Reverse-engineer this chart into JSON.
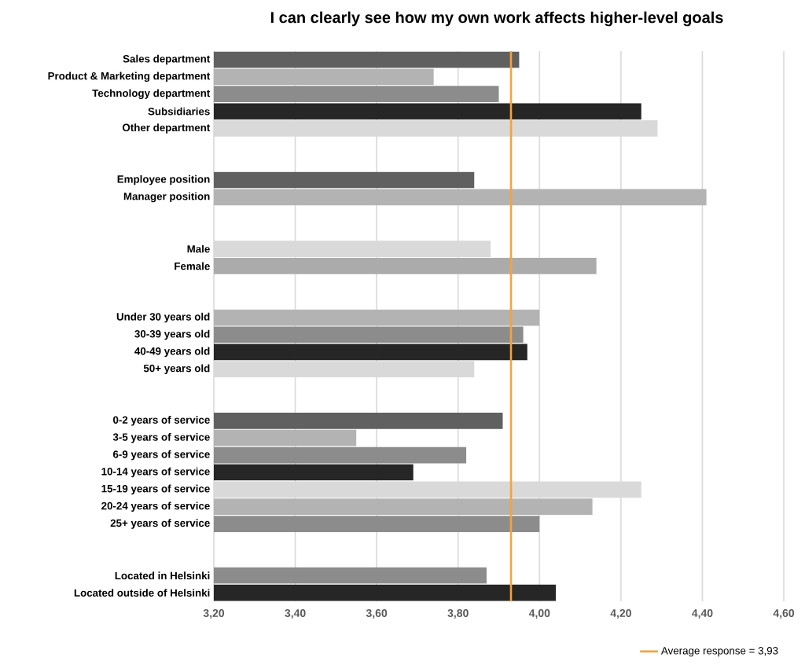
{
  "chart_data": {
    "type": "bar",
    "orientation": "horizontal",
    "title": "I can clearly see how my own work affects higher-level goals",
    "categories": [
      "Sales department",
      "Product & Marketing department",
      "Technology department",
      "Subsidiaries",
      "Other department",
      null,
      null,
      "Employee position",
      "Manager position",
      null,
      null,
      "Male",
      "Female",
      null,
      null,
      "Under 30 years old",
      "30-39 years old",
      "40-49 years old",
      "50+ years old",
      null,
      null,
      "0-2 years of service",
      "3-5 years of service",
      "6-9 years of service",
      "10-14 years of service",
      "15-19 years of service",
      "20-24 years of service",
      "25+ years of service",
      null,
      null,
      "Located in Helsinki",
      "Located outside of Helsinki"
    ],
    "values": [
      3.95,
      3.74,
      3.9,
      4.25,
      4.29,
      null,
      null,
      3.84,
      4.41,
      null,
      null,
      3.88,
      4.14,
      null,
      null,
      4.0,
      3.96,
      3.97,
      3.84,
      null,
      null,
      3.91,
      3.55,
      3.82,
      3.69,
      4.25,
      4.13,
      4.0,
      null,
      null,
      3.87,
      4.04
    ],
    "colors": [
      "#606060",
      "#b3b3b3",
      "#8c8c8c",
      "#262626",
      "#d9d9d9",
      null,
      null,
      "#606060",
      "#b3b3b3",
      null,
      null,
      "#d9d9d9",
      "#ababab",
      null,
      null,
      "#b3b3b3",
      "#8c8c8c",
      "#262626",
      "#d9d9d9",
      null,
      null,
      "#606060",
      "#b3b3b3",
      "#8c8c8c",
      "#262626",
      "#d9d9d9",
      "#b3b3b3",
      "#8c8c8c",
      null,
      null,
      "#8c8c8c",
      "#262626"
    ],
    "xlim": [
      3.2,
      4.6
    ],
    "xticks": [
      {
        "value": 3.2,
        "label": "3,20"
      },
      {
        "value": 3.4,
        "label": "3,40"
      },
      {
        "value": 3.6,
        "label": "3,60"
      },
      {
        "value": 3.8,
        "label": "3,80"
      },
      {
        "value": 4.0,
        "label": "4,00"
      },
      {
        "value": 4.2,
        "label": "4,20"
      },
      {
        "value": 4.4,
        "label": "4,40"
      },
      {
        "value": 4.6,
        "label": "4,60"
      }
    ],
    "ref_lines": [
      {
        "axis": "x",
        "value": 3.93,
        "label": "Average response = 3,93",
        "color": "#f7a23b"
      }
    ],
    "grid": "x",
    "legend": "bottom right"
  }
}
